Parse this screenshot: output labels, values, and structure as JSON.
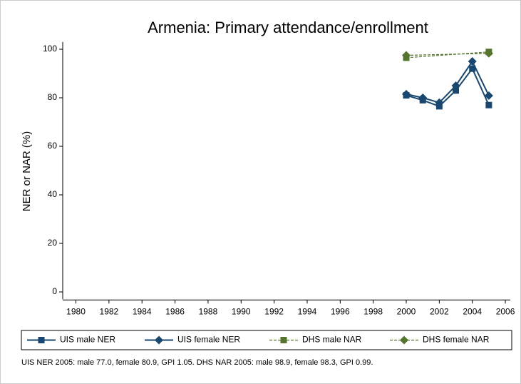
{
  "chart_data": {
    "type": "line",
    "title": "Armenia: Primary attendance/enrollment",
    "ylabel": "NER or NAR (%)",
    "note": "UIS NER 2005: male 77.0, female 80.9, GPI 1.05. DHS NAR 2005: male 98.9, female 98.3, GPI 0.99.",
    "xlim": [
      1979.2,
      2006.3
    ],
    "xticks": [
      1980,
      1982,
      1984,
      1986,
      1988,
      1990,
      1992,
      1994,
      1996,
      1998,
      2000,
      2002,
      2004,
      2006
    ],
    "ylim": [
      -3,
      103
    ],
    "yticks": [
      0,
      20,
      40,
      60,
      80,
      100
    ],
    "series": [
      {
        "name": "UIS male NER",
        "color": "#1a476f",
        "marker": "square",
        "dash": false,
        "x": [
          2000,
          2001,
          2002,
          2003,
          2004,
          2005
        ],
        "values": [
          81,
          79,
          76.5,
          83,
          92,
          77.0
        ]
      },
      {
        "name": "UIS female NER",
        "color": "#1a476f",
        "marker": "diamond",
        "dash": false,
        "x": [
          2000,
          2001,
          2002,
          2003,
          2004,
          2005
        ],
        "values": [
          81.5,
          80,
          78,
          85,
          95,
          80.9
        ]
      },
      {
        "name": "DHS male NAR",
        "color": "#55752f",
        "marker": "square",
        "dash": true,
        "x": [
          2000,
          2005
        ],
        "values": [
          96.5,
          98.9
        ]
      },
      {
        "name": "DHS female NAR",
        "color": "#55752f",
        "marker": "diamond",
        "dash": true,
        "x": [
          2000,
          2005
        ],
        "values": [
          97.5,
          98.3
        ]
      }
    ]
  }
}
